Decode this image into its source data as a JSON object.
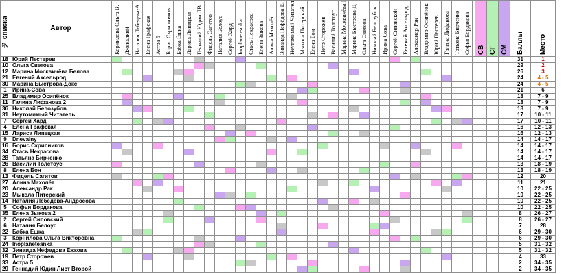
{
  "header": {
    "num_label": "№ списка",
    "author_label": "Автор",
    "jurors": [
      "Корнилова Ольга В.",
      "Джевалкий",
      "Наталья Лебедева-А",
      "Елена Графская",
      "Астра 5",
      "Борис Скрипников",
      "Бабка Ёшка",
      "Лариса Липецкая",
      "Геннадий Юдин ЛВ",
      "Фидель Сагитов",
      "Наталия Белоус",
      "Сергей Хард",
      "Inoplaneteanka",
      "Стась Некрасова",
      "Елена Зыкова",
      "Алина Махолёт",
      "Зинаида Нефёдова Е.",
      "Неутомимый Читатель",
      "Мыкола Питерский",
      "Елена Бон",
      "Петр Сторожев",
      "Василий Толстоус",
      "Марина Москвичёва Б",
      "Марина Быстрова-Д",
      "Ольга Светова",
      "Николай Белозубов",
      "Ирина Сова",
      "Сергей Сиповской",
      "Евгений Аксельрод",
      "Александр Рак",
      "Владимир Осипёнок",
      "Юрий Пестерев",
      "Галина Лифанова",
      "Татьяна Бирченко",
      "Софья Бордакова"
    ],
    "sv": "СВ",
    "sg": "СГ",
    "sm": "СМ",
    "points": "Баллы",
    "place": "Место"
  },
  "rows": [
    {
      "no": "18",
      "name": "Юрий Пестерев",
      "points": "31",
      "place": "1"
    },
    {
      "no": "10",
      "name": "Ольга Светова",
      "points": "29",
      "place": "2"
    },
    {
      "no": "12",
      "name": "Марина Москвичёва Белова",
      "points": "26",
      "place": "3"
    },
    {
      "no": "21",
      "name": "Евгений Аксельрод",
      "points": "24",
      "place": "4 - 5"
    },
    {
      "no": "30",
      "name": "Марина Быстрова-Докс",
      "points": "24",
      "place": "4 - 5"
    },
    {
      "no": "1",
      "name": "Ирина-Сова",
      "points": "21",
      "place": "6"
    },
    {
      "no": "25",
      "name": "Владимир Осипёнок",
      "points": "18",
      "place": "7 - 9"
    },
    {
      "no": "11",
      "name": "Галина Лифанова 2",
      "points": "18",
      "place": "7 - 9"
    },
    {
      "no": "36",
      "name": "Николай Белозубов",
      "points": "18",
      "place": "7 - 9"
    },
    {
      "no": "31",
      "name": "Неутомимый Читатель",
      "points": "17",
      "place": "10 - 11"
    },
    {
      "no": "7",
      "name": "Сергей Хард",
      "points": "17",
      "place": "10 - 11"
    },
    {
      "no": "4",
      "name": "Елена Графская",
      "points": "16",
      "place": "12 - 13"
    },
    {
      "no": "15",
      "name": "Лариса Липецкая",
      "points": "16",
      "place": "12 - 13"
    },
    {
      "no": "9",
      "name": "Dnevalny",
      "points": "14",
      "place": "14 - 17"
    },
    {
      "no": "16",
      "name": "Борис Скрипников",
      "points": "14",
      "place": "14 - 17"
    },
    {
      "no": "34",
      "name": "Стась Некрасова",
      "points": "14",
      "place": "14 - 17"
    },
    {
      "no": "28",
      "name": "Татьяна Бирченко",
      "points": "14",
      "place": "14 - 17"
    },
    {
      "no": "26",
      "name": "Василий Толстоус",
      "points": "13",
      "place": "18 - 19"
    },
    {
      "no": "8",
      "name": "Елена Бон",
      "points": "13",
      "place": "18 - 19"
    },
    {
      "no": "13",
      "name": "Фидель Сагитов",
      "points": "12",
      "place": "20"
    },
    {
      "no": "27",
      "name": "Алина Махолёт",
      "points": "11",
      "place": "21"
    },
    {
      "no": "20",
      "name": "Александр Рак",
      "points": "10",
      "place": "22 - 25"
    },
    {
      "no": "23",
      "name": "Мыкола Питерский",
      "points": "10",
      "place": "22 - 25"
    },
    {
      "no": "14",
      "name": "Наталия Лебедева-Андросова",
      "points": "10",
      "place": "22 - 25"
    },
    {
      "no": "5",
      "name": "Софья Бордакова",
      "points": "10",
      "place": "22 - 25"
    },
    {
      "no": "35",
      "name": "Елена Зыкова 2",
      "points": "8",
      "place": "26 - 27"
    },
    {
      "no": "2",
      "name": "Сергей Сиповский",
      "points": "8",
      "place": "26 - 27"
    },
    {
      "no": "6",
      "name": "Наталия Белоус",
      "points": "7",
      "place": "28"
    },
    {
      "no": "22",
      "name": "Бабка Ёшка",
      "points": "6",
      "place": "29 - 30"
    },
    {
      "no": "3",
      "name": "Корнилова Ольга Викторовна",
      "points": "6",
      "place": "29 - 30"
    },
    {
      "no": "24",
      "name": "Inoplaneteanka",
      "points": "5",
      "place": "31 - 32"
    },
    {
      "no": "32",
      "name": "Зинаида Нефедова Ежкова",
      "points": "5",
      "place": "31 - 32"
    },
    {
      "no": "19",
      "name": "Петр Сторожев",
      "points": "4",
      "place": "33"
    },
    {
      "no": "33",
      "name": "Астра 5",
      "points": "2",
      "place": "34 - 35"
    },
    {
      "no": "29",
      "name": "Геннадий Юдин Лист Второй",
      "points": "2",
      "place": "34 - 35"
    }
  ],
  "colors": {
    "grid": "#8e8e8e",
    "grey": "#c8c8c8",
    "green": "#b5f0b5",
    "pink": "#f7a8ef",
    "lavender": "#c9a7f0",
    "place_top": "#c00000",
    "place_orange": "#e07000"
  }
}
